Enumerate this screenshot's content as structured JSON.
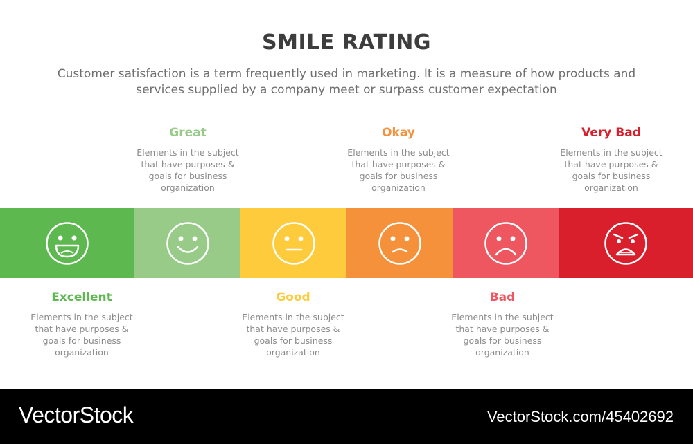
{
  "title": "SMILE RATING",
  "subtitle": "Customer satisfaction is a term frequently used in marketing. It is a measure of how products and services supplied by a company meet or surpass customer expectation",
  "ratings": [
    {
      "label": "Excellent",
      "description": "Elements in the subject that have purposes & goals for business organization",
      "color": "#5cb84f",
      "label_color": "#5cb84f",
      "icon": "big-grin-face-icon",
      "position": "bottom"
    },
    {
      "label": "Great",
      "description": "Elements in the subject that have purposes & goals for business organization",
      "color": "#97cb87",
      "label_color": "#97cb87",
      "icon": "smile-face-icon",
      "position": "top"
    },
    {
      "label": "Good",
      "description": "Elements in the subject that have purposes & goals for business organization",
      "color": "#fdcb3b",
      "label_color": "#fdcb3b",
      "icon": "neutral-face-icon",
      "position": "bottom"
    },
    {
      "label": "Okay",
      "description": "Elements in the subject that have purposes & goals for business organization",
      "color": "#f6913b",
      "label_color": "#f6913b",
      "icon": "slight-frown-face-icon",
      "position": "top"
    },
    {
      "label": "Bad",
      "description": "Elements in the subject that have purposes & goals for business organization",
      "color": "#ee5660",
      "label_color": "#ee5660",
      "icon": "sad-face-icon",
      "position": "bottom"
    },
    {
      "label": "Very Bad",
      "description": "Elements in the subject that have purposes & goals for business organization",
      "color": "#d81f2b",
      "label_color": "#d81f2b",
      "icon": "angry-face-icon",
      "position": "top"
    }
  ],
  "footer": {
    "brand": "VectorStock",
    "url": "VectorStock.com/45402692"
  }
}
